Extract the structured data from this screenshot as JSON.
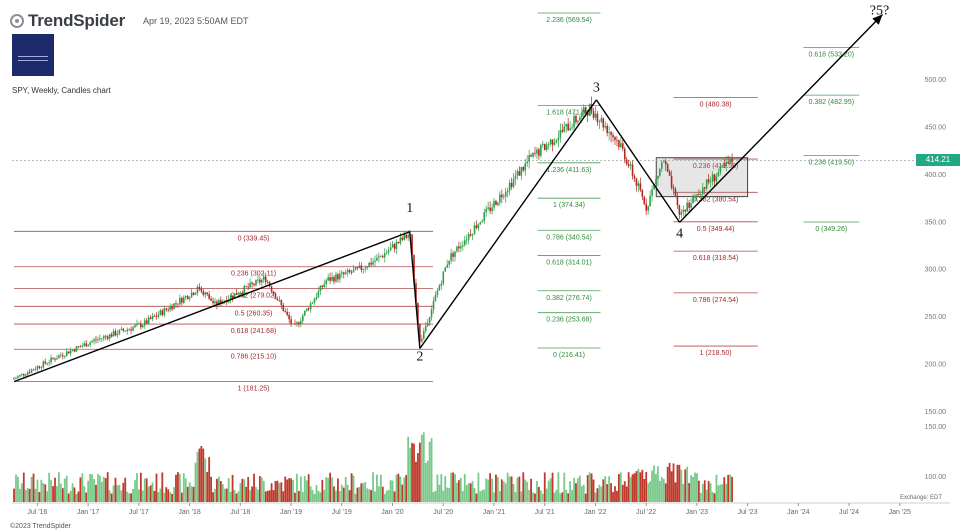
{
  "header": {
    "brand": "TrendSpider",
    "timestamp": "Apr 19, 2023 5:50AM EDT"
  },
  "symbol_label": "SPY, Weekly, Candles chart",
  "current_price": "414.21",
  "footer": {
    "copyright": "©2023 TrendSpider",
    "exchange": "Exchange: EDT"
  },
  "colors": {
    "up": "#2e9e4a",
    "down": "#b3261e",
    "volume_up": "#79c98a",
    "volume_down": "#c0392b",
    "fib_red": "#a52a2a",
    "fib_green": "#2e8b3a",
    "price_tag": "#23a887",
    "wave_line": "#000000"
  },
  "icons": {
    "logo": "trendspider-logo-icon",
    "watermark": "brand-watermark-icon"
  },
  "chart_data": {
    "type": "candlestick",
    "title": "SPY, Weekly, Candles chart",
    "timeframe": "Weekly",
    "x_ticks": [
      "Jul '16",
      "Jan '17",
      "Jul '17",
      "Jan '18",
      "Jul '18",
      "Jan '19",
      "Jul '19",
      "Jan '20",
      "Jul '20",
      "Jan '21",
      "Jul '21",
      "Jan '22",
      "Jul '22",
      "Jan '23",
      "Jul '23",
      "Jan '24",
      "Jul '24",
      "Jan '25"
    ],
    "y_ticks": [
      150,
      200,
      250,
      300,
      350,
      400,
      450,
      500
    ],
    "y_range": [
      130,
      520
    ],
    "x_range": [
      2016.2,
      2025.1
    ],
    "price_path": [
      {
        "x": 2016.22,
        "y": 184
      },
      {
        "x": 2016.7,
        "y": 210
      },
      {
        "x": 2017.0,
        "y": 224
      },
      {
        "x": 2017.5,
        "y": 242
      },
      {
        "x": 2018.05,
        "y": 280
      },
      {
        "x": 2018.2,
        "y": 262
      },
      {
        "x": 2018.7,
        "y": 290
      },
      {
        "x": 2018.98,
        "y": 237
      },
      {
        "x": 2019.3,
        "y": 288
      },
      {
        "x": 2019.6,
        "y": 298
      },
      {
        "x": 2019.8,
        "y": 310
      },
      {
        "x": 2020.12,
        "y": 337
      },
      {
        "x": 2020.22,
        "y": 222
      },
      {
        "x": 2020.5,
        "y": 310
      },
      {
        "x": 2020.9,
        "y": 362
      },
      {
        "x": 2021.3,
        "y": 415
      },
      {
        "x": 2021.9,
        "y": 470
      },
      {
        "x": 2022.2,
        "y": 430
      },
      {
        "x": 2022.45,
        "y": 365
      },
      {
        "x": 2022.62,
        "y": 415
      },
      {
        "x": 2022.78,
        "y": 357
      },
      {
        "x": 2023.0,
        "y": 385
      },
      {
        "x": 2023.3,
        "y": 414
      }
    ],
    "wave_labels": [
      {
        "label": "1",
        "x": 2020.12,
        "y": 360
      },
      {
        "label": "2",
        "x": 2020.22,
        "y": 203
      },
      {
        "label": "3",
        "x": 2021.96,
        "y": 487
      },
      {
        "label": "4",
        "x": 2022.78,
        "y": 333
      },
      {
        "label": "?5?",
        "x": 2024.75,
        "y": 568
      }
    ],
    "wave_lines": [
      {
        "from": [
          2016.22,
          181
        ],
        "to": [
          2020.12,
          339
        ]
      },
      {
        "from": [
          2020.12,
          339
        ],
        "to": [
          2020.22,
          216
        ]
      },
      {
        "from": [
          2020.22,
          216
        ],
        "to": [
          2021.96,
          478
        ]
      },
      {
        "from": [
          2021.96,
          478
        ],
        "to": [
          2022.78,
          349
        ]
      },
      {
        "from": [
          2022.78,
          349
        ],
        "to": [
          2024.78,
          568
        ]
      }
    ],
    "consolidation_box": {
      "x0": 2022.55,
      "x1": 2023.45,
      "y0": 376,
      "y1": 417
    },
    "current_price_line": 414.21,
    "fib_sets": [
      {
        "name": "retracement-wave-1",
        "color": "red",
        "x0": 2016.22,
        "x1": 2020.35,
        "levels": [
          {
            "label": "0 (339.45)",
            "value": 339.45
          },
          {
            "label": "0.236 (302.11)",
            "value": 302.11
          },
          {
            "label": "0.382 (279.02)",
            "value": 279.02
          },
          {
            "label": "0.5 (260.35)",
            "value": 260.35
          },
          {
            "label": "0.618 (241.68)",
            "value": 241.68
          },
          {
            "label": "0.786 (215.10)",
            "value": 215.1
          },
          {
            "label": "1 (181.25)",
            "value": 181.25
          }
        ]
      },
      {
        "name": "extension-wave-3",
        "color": "green",
        "x0": 2021.38,
        "x1": 2022.0,
        "levels": [
          {
            "label": "2.236 (569.54)",
            "value": 569.54
          },
          {
            "label": "1.618 (471.94)",
            "value": 471.94
          },
          {
            "label": "1.236 (411.63)",
            "value": 411.63
          },
          {
            "label": "1 (374.34)",
            "value": 374.34
          },
          {
            "label": "0.786 (340.54)",
            "value": 340.54
          },
          {
            "label": "0.618 (314.01)",
            "value": 314.01
          },
          {
            "label": "0.382 (276.74)",
            "value": 276.74
          },
          {
            "label": "0.236 (253.68)",
            "value": 253.68
          },
          {
            "label": "0 (216.41)",
            "value": 216.41
          }
        ]
      },
      {
        "name": "retracement-wave-4",
        "color": "red",
        "x0": 2022.72,
        "x1": 2023.55,
        "levels": [
          {
            "label": "0 (480.38)",
            "value": 480.38
          },
          {
            "label": "0.236 (415.58)",
            "value": 415.58
          },
          {
            "label": "0.382 (380.54)",
            "value": 380.54
          },
          {
            "label": "0.5 (349.44)",
            "value": 349.44
          },
          {
            "label": "0.618 (318.54)",
            "value": 318.54
          },
          {
            "label": "0.786 (274.54)",
            "value": 274.54
          },
          {
            "label": "1 (218.50)",
            "value": 218.5
          }
        ]
      },
      {
        "name": "extension-wave-5",
        "color": "green",
        "x0": 2024.0,
        "x1": 2024.55,
        "levels": [
          {
            "label": "0.618 (533.20)",
            "value": 533.2
          },
          {
            "label": "0.382 (482.95)",
            "value": 482.95
          },
          {
            "label": "0.236 (419.50)",
            "value": 419.5
          },
          {
            "label": "0 (349.26)",
            "value": 349.26
          }
        ]
      }
    ],
    "volume": {
      "y_ticks_label": [
        "100.00",
        "150.00"
      ]
    }
  }
}
